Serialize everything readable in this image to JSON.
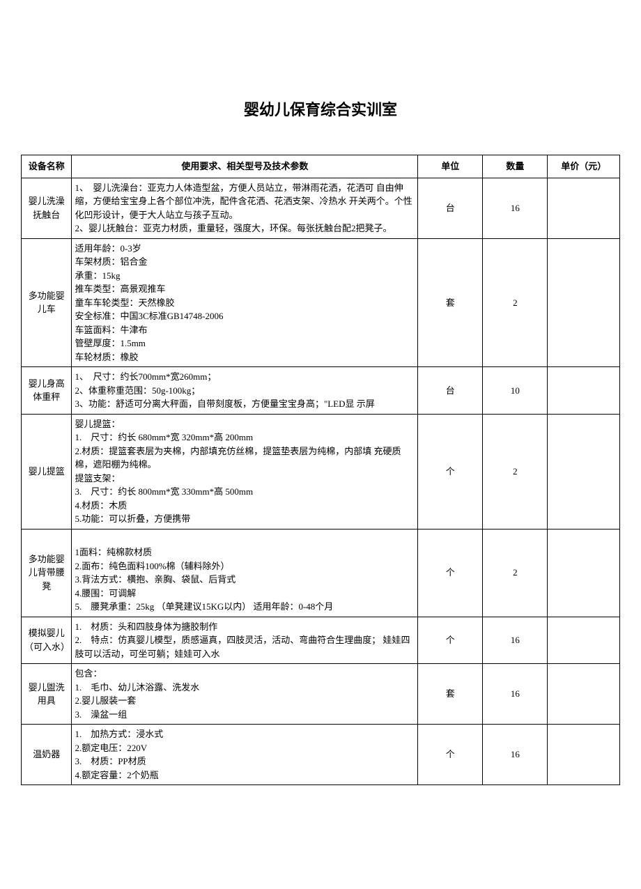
{
  "title": "婴幼儿保育综合实训室",
  "columns": [
    "设备名称",
    "使用要求、相关型号及技术参数",
    "单位",
    "数量",
    "单价（元）"
  ],
  "rows": [
    {
      "name": "婴儿洗澡抚触台",
      "spec": "1、　婴儿洗澡台：亚克力人体造型盆，方便人员站立，带淋雨花洒，花洒可 自由伸缩，方便给宝宝身上各个部位冲洗，配件含花洒、花洒支架、冷热水 开关两个。个性化凹形设计，便于大人站立与孩子互动。\n2、婴儿抚触台：亚克力材质，重量轻，强度大，环保。每张抚触台配2把凳子。",
      "unit": "台",
      "qty": "16",
      "price": ""
    },
    {
      "name": "多功能婴儿车",
      "spec": "适用年龄：0-3岁\n车架材质：铝合金\n承重：15kg\n推车类型：高景观推车\n童车车轮类型：天然橡胶\n安全标准：中国3C标准GB14748-2006\n车篮面料：牛津布\n管壁厚度：1.5mm\n车轮材质：橡胶",
      "unit": "套",
      "qty": "2",
      "price": ""
    },
    {
      "name": "婴儿身高体重秤",
      "spec": "1、　尺寸：约长700mm*宽260mm；\n2、体重称重范围：50g-100kg；\n3、功能：舒适可分离大秤面，自带刻度板，方便量宝宝身高；\"LED显 示屏",
      "unit": "台",
      "qty": "10",
      "price": ""
    },
    {
      "name": "婴儿提篮",
      "spec": "婴儿提篮：\n1.　尺寸：约长 680mm*宽 320mm*高 200mm\n2.材质：提篮套表层为夹棉，内部填充仿丝棉，提篮垫表层为纯棉，内部填 充硬质棉，遮阳棚为纯棉。\n提篮支架：\n3.　尺寸：约长 800mm*宽 330mm*高 500mm\n4.材质：木质\n5.功能：可以折叠，方便携带",
      "unit": "个",
      "qty": "2",
      "price": ""
    },
    {
      "name": "多功能婴儿背带腰凳",
      "spec": "\n1面料：纯棉款材质\n2.面布：纯色面料100%棉（辅料除外）\n3.背法方式：横抱、亲胸、袋鼠、后背式\n4.腰围：可调解\n5.　腰凳承重：25kg （单凳建议15KG以内） 适用年龄：0-48个月",
      "unit": "个",
      "qty": "2",
      "price": ""
    },
    {
      "name": "模拟婴儿（可入水）",
      "spec": "1.　材质：头和四肢身体为搪胶制作\n2.　特点：仿真婴儿模型，质感逼真，四肢灵活，活动、弯曲符合生理曲度； 娃娃四肢可以活动，可坐可躺；娃娃可入水",
      "unit": "个",
      "qty": "16",
      "price": ""
    },
    {
      "name": "婴儿盥洗用具",
      "spec": "包含：\n1.　毛巾、幼儿沐浴露、洗发水\n2.婴儿服装一套\n3.　澡盆一组",
      "unit": "套",
      "qty": "16",
      "price": ""
    },
    {
      "name": "温奶器",
      "spec": "1.　加热方式：浸水式\n2.额定电压：220V\n3.　材质：PP材质\n4.额定容量：2个奶瓶",
      "unit": "个",
      "qty": "16",
      "price": ""
    }
  ]
}
